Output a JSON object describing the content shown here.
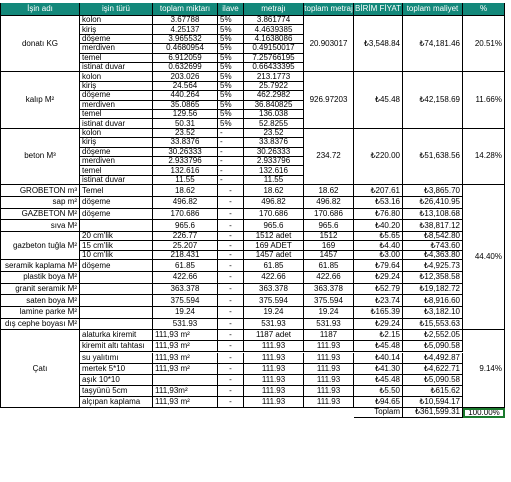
{
  "headers": [
    "İşin adı",
    "işin türü",
    "toplam miktarı",
    "ilave",
    "metrajı",
    "toplam metraj",
    "BİRİM FİYAT",
    "toplam maliyet",
    "%"
  ],
  "groups": [
    {
      "name": "donatı KG",
      "total_qty": "20.903017",
      "unit_price": "₺3,548.84",
      "total_cost": "₺74,181.46",
      "percent": "20.51%",
      "rows": [
        {
          "type": "kolon",
          "qty": "3.67788",
          "extra": "5%",
          "metraj": "3.861774"
        },
        {
          "type": "kiriş",
          "qty": "4.25137",
          "extra": "5%",
          "metraj": "4.4639385"
        },
        {
          "type": "döşeme",
          "qty": "3.965532",
          "extra": "5%",
          "metraj": "4.1638086"
        },
        {
          "type": "merdiven",
          "qty": "0.4680954",
          "extra": "5%",
          "metraj": "0.49150017"
        },
        {
          "type": "temel",
          "qty": "6.912059",
          "extra": "5%",
          "metraj": "7.25766195"
        },
        {
          "type": "istinat duvar",
          "qty": "0.632699",
          "extra": "5%",
          "metraj": "0.66433395"
        }
      ]
    },
    {
      "name": "kalıp M²",
      "total_qty": "926.97203",
      "unit_price": "₺45.48",
      "total_cost": "₺42,158.69",
      "percent": "11.66%",
      "rows": [
        {
          "type": "kolon",
          "qty": "203.026",
          "extra": "5%",
          "metraj": "213.1773"
        },
        {
          "type": "kiriş",
          "qty": "24.564",
          "extra": "5%",
          "metraj": "25.7922"
        },
        {
          "type": "döşeme",
          "qty": "440.264",
          "extra": "5%",
          "metraj": "462.2982"
        },
        {
          "type": "merdiven",
          "qty": "35.0865",
          "extra": "5%",
          "metraj": "36.840825"
        },
        {
          "type": "temel",
          "qty": "129.56",
          "extra": "5%",
          "metraj": "136.038"
        },
        {
          "type": "istinat duvar",
          "qty": "50.31",
          "extra": "5%",
          "metraj": "52.8255"
        }
      ]
    },
    {
      "name": "beton M³",
      "total_qty": "234.72",
      "unit_price": "₺220.00",
      "total_cost": "₺51,638.56",
      "percent": "14.28%",
      "rows": [
        {
          "type": "kolon",
          "qty": "23.52",
          "extra": "-",
          "metraj": "23.52"
        },
        {
          "type": "kiriş",
          "qty": "33.8376",
          "extra": "-",
          "metraj": "33.8376"
        },
        {
          "type": "döşeme",
          "qty": "30.26333",
          "extra": "-",
          "metraj": "30.26333"
        },
        {
          "type": "merdiven",
          "qty": "2.933796",
          "extra": "-",
          "metraj": "2.933796"
        },
        {
          "type": "temel",
          "qty": "132.616",
          "extra": "-",
          "metraj": "132.616"
        },
        {
          "type": "istinat duvar",
          "qty": "11.55",
          "extra": "-",
          "metraj": "11.55"
        }
      ]
    }
  ],
  "singles": [
    {
      "name": "GROBETON m³",
      "type": "Temel",
      "qty": "18.62",
      "extra": "-",
      "metraj": "18.62",
      "total_qty": "18.62",
      "unit_price": "₺207.61",
      "total_cost": "₺3,865.70"
    },
    {
      "name": "sap  m²",
      "type": "döşeme",
      "qty": "496.82",
      "extra": "-",
      "metraj": "496.82",
      "total_qty": "496.82",
      "unit_price": "₺53.16",
      "total_cost": "₺26,410.95"
    },
    {
      "name": "GAZBETON M²",
      "type": "döşeme",
      "qty": "170.686",
      "extra": "-",
      "metraj": "170.686",
      "total_qty": "170.686",
      "unit_price": "₺76.80",
      "total_cost": "₺13,108.68"
    },
    {
      "name": "sıva M²",
      "type": "",
      "qty": "965.6",
      "extra": "-",
      "metraj": "965.6",
      "total_qty": "965.6",
      "unit_price": "₺40.20",
      "total_cost": "₺38,817.12"
    }
  ],
  "gazbeton": {
    "name": "gazbeton tuğla M²",
    "rows": [
      {
        "type": "20 cm'lik",
        "qty": "226.77",
        "extra": "-",
        "metraj": "1512 adet",
        "total_qty": "1512",
        "unit_price": "₺5.65",
        "total_cost": "₺8,542.80"
      },
      {
        "type": "15 cm'lik",
        "qty": "25.207",
        "extra": "-",
        "metraj": "169 ADET",
        "total_qty": "169",
        "unit_price": "₺4.40",
        "total_cost": "₺743.60"
      },
      {
        "type": "10 cm'lik",
        "qty": "218.431",
        "extra": "-",
        "metraj": "1457 adet",
        "total_qty": "1457",
        "unit_price": "₺3.00",
        "total_cost": "₺4,363.80"
      }
    ]
  },
  "singles2": [
    {
      "name": "seramik kaplama M²",
      "type": "döşeme",
      "qty": "61.85",
      "extra": "-",
      "metraj": "61.85",
      "total_qty": "61.85",
      "unit_price": "₺79.64",
      "total_cost": "₺4,925.73"
    },
    {
      "name": "plastik boya M²",
      "type": "",
      "qty": "422.66",
      "extra": "-",
      "metraj": "422.66",
      "total_qty": "422.66",
      "unit_price": "₺29.24",
      "total_cost": "₺12,358.58"
    },
    {
      "name": "granit seramik M²",
      "type": "",
      "qty": "363.378",
      "extra": "-",
      "metraj": "363.378",
      "total_qty": "363.378",
      "unit_price": "₺52.79",
      "total_cost": "₺19,182.72"
    },
    {
      "name": "saten boya M²",
      "type": "",
      "qty": "375.594",
      "extra": "-",
      "metraj": "375.594",
      "total_qty": "375.594",
      "unit_price": "₺23.74",
      "total_cost": "₺8,916.60"
    },
    {
      "name": "lamine parke M²",
      "type": "",
      "qty": "19.24",
      "extra": "-",
      "metraj": "19.24",
      "total_qty": "19.24",
      "unit_price": "₺165.39",
      "total_cost": "₺3,182.10"
    },
    {
      "name": "dış cephe boyası M²",
      "type": "",
      "qty": "531.93",
      "extra": "-",
      "metraj": "531.93",
      "total_qty": "531.93",
      "unit_price": "₺29.24",
      "total_cost": "₺15,553.63"
    }
  ],
  "mid_percent": "44.40%",
  "cati": {
    "name": "Çatı",
    "percent": "9.14%",
    "rows": [
      {
        "type": "alaturka kiremit",
        "qty": "111,93 m²",
        "extra": "-",
        "metraj": "1187 adet",
        "total_qty": "1187",
        "unit_price": "₺2.15",
        "total_cost": "₺2,552.05"
      },
      {
        "type": "kiremit altı tahtası",
        "qty": "111,93 m²",
        "extra": "-",
        "metraj": "111.93",
        "total_qty": "111.93",
        "unit_price": "₺45.48",
        "total_cost": "₺5,090.58"
      },
      {
        "type": "su yalıtımı",
        "qty": "111,93 m²",
        "extra": "-",
        "metraj": "111.93",
        "total_qty": "111.93",
        "unit_price": "₺40.14",
        "total_cost": "₺4,492.87"
      },
      {
        "type": "mertek 5*10",
        "qty": "111,93 m²",
        "extra": "-",
        "metraj": "111.93",
        "total_qty": "111.93",
        "unit_price": "₺41.30",
        "total_cost": "₺4,622.71"
      },
      {
        "type": "aşık 10*10",
        "qty": "",
        "extra": "-",
        "metraj": "111.93",
        "total_qty": "111.93",
        "unit_price": "₺45.48",
        "total_cost": "₺5,090.58"
      },
      {
        "type": "taşyünü 5cm",
        "qty": "111,93m²",
        "extra": "-",
        "metraj": "111.93",
        "total_qty": "111.93",
        "unit_price": "₺5.50",
        "total_cost": "₺615.62"
      },
      {
        "type": "alçıpan kaplama",
        "qty": "111,93 m²",
        "extra": "-",
        "metraj": "111.93",
        "total_qty": "111.93",
        "unit_price": "₺94.65",
        "total_cost": "₺10,594.17"
      }
    ]
  },
  "footer": {
    "label": "Toplam",
    "total": "₺361,599.31",
    "percent": "100.00%"
  },
  "colors": {
    "header_bg": "#13887a",
    "header_text": "#ffffff",
    "grid": "#000000",
    "selection": "#1b7a2e"
  }
}
